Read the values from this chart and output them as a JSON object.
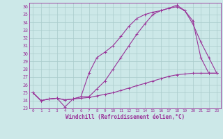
{
  "xlabel": "Windchill (Refroidissement éolien,°C)",
  "background_color": "#cce8e8",
  "grid_color": "#aacccc",
  "line_color": "#993399",
  "xlim": [
    -0.5,
    23.5
  ],
  "ylim": [
    23.0,
    36.5
  ],
  "xticks": [
    0,
    1,
    2,
    3,
    4,
    5,
    6,
    7,
    8,
    9,
    10,
    11,
    12,
    13,
    14,
    15,
    16,
    17,
    18,
    19,
    20,
    21,
    22,
    23
  ],
  "yticks": [
    23,
    24,
    25,
    26,
    27,
    28,
    29,
    30,
    31,
    32,
    33,
    34,
    35,
    36
  ],
  "curve1_x": [
    0,
    1,
    2,
    3,
    4,
    5,
    6,
    7,
    8,
    9,
    10,
    11,
    12,
    13,
    14,
    15,
    16,
    17,
    18,
    19,
    20,
    21,
    22,
    23
  ],
  "curve1_y": [
    25.0,
    24.0,
    24.2,
    24.3,
    24.1,
    24.2,
    24.3,
    24.4,
    24.6,
    24.8,
    25.0,
    25.3,
    25.6,
    25.9,
    26.2,
    26.5,
    26.8,
    27.1,
    27.3,
    27.4,
    27.5,
    27.5,
    27.5,
    27.5
  ],
  "curve2_x": [
    0,
    1,
    2,
    3,
    4,
    5,
    6,
    7,
    8,
    9,
    10,
    11,
    12,
    13,
    14,
    15,
    16,
    17,
    18,
    19,
    20,
    21,
    22,
    23
  ],
  "curve2_y": [
    25.0,
    24.0,
    24.2,
    24.3,
    23.2,
    24.2,
    24.5,
    27.5,
    29.5,
    30.2,
    31.0,
    32.2,
    33.5,
    34.5,
    35.0,
    35.3,
    35.5,
    35.8,
    36.2,
    35.5,
    33.8,
    31.5,
    29.5,
    27.5
  ],
  "curve3_x": [
    0,
    1,
    2,
    3,
    4,
    5,
    6,
    7,
    8,
    9,
    10,
    11,
    12,
    13,
    14,
    15,
    16,
    17,
    18,
    19,
    20,
    21,
    22,
    23
  ],
  "curve3_y": [
    25.0,
    24.0,
    24.2,
    24.3,
    24.1,
    24.2,
    24.5,
    24.5,
    25.5,
    26.5,
    28.0,
    29.5,
    31.0,
    32.5,
    33.8,
    35.0,
    35.5,
    35.8,
    36.0,
    35.5,
    34.2,
    29.5,
    27.5,
    27.5
  ]
}
